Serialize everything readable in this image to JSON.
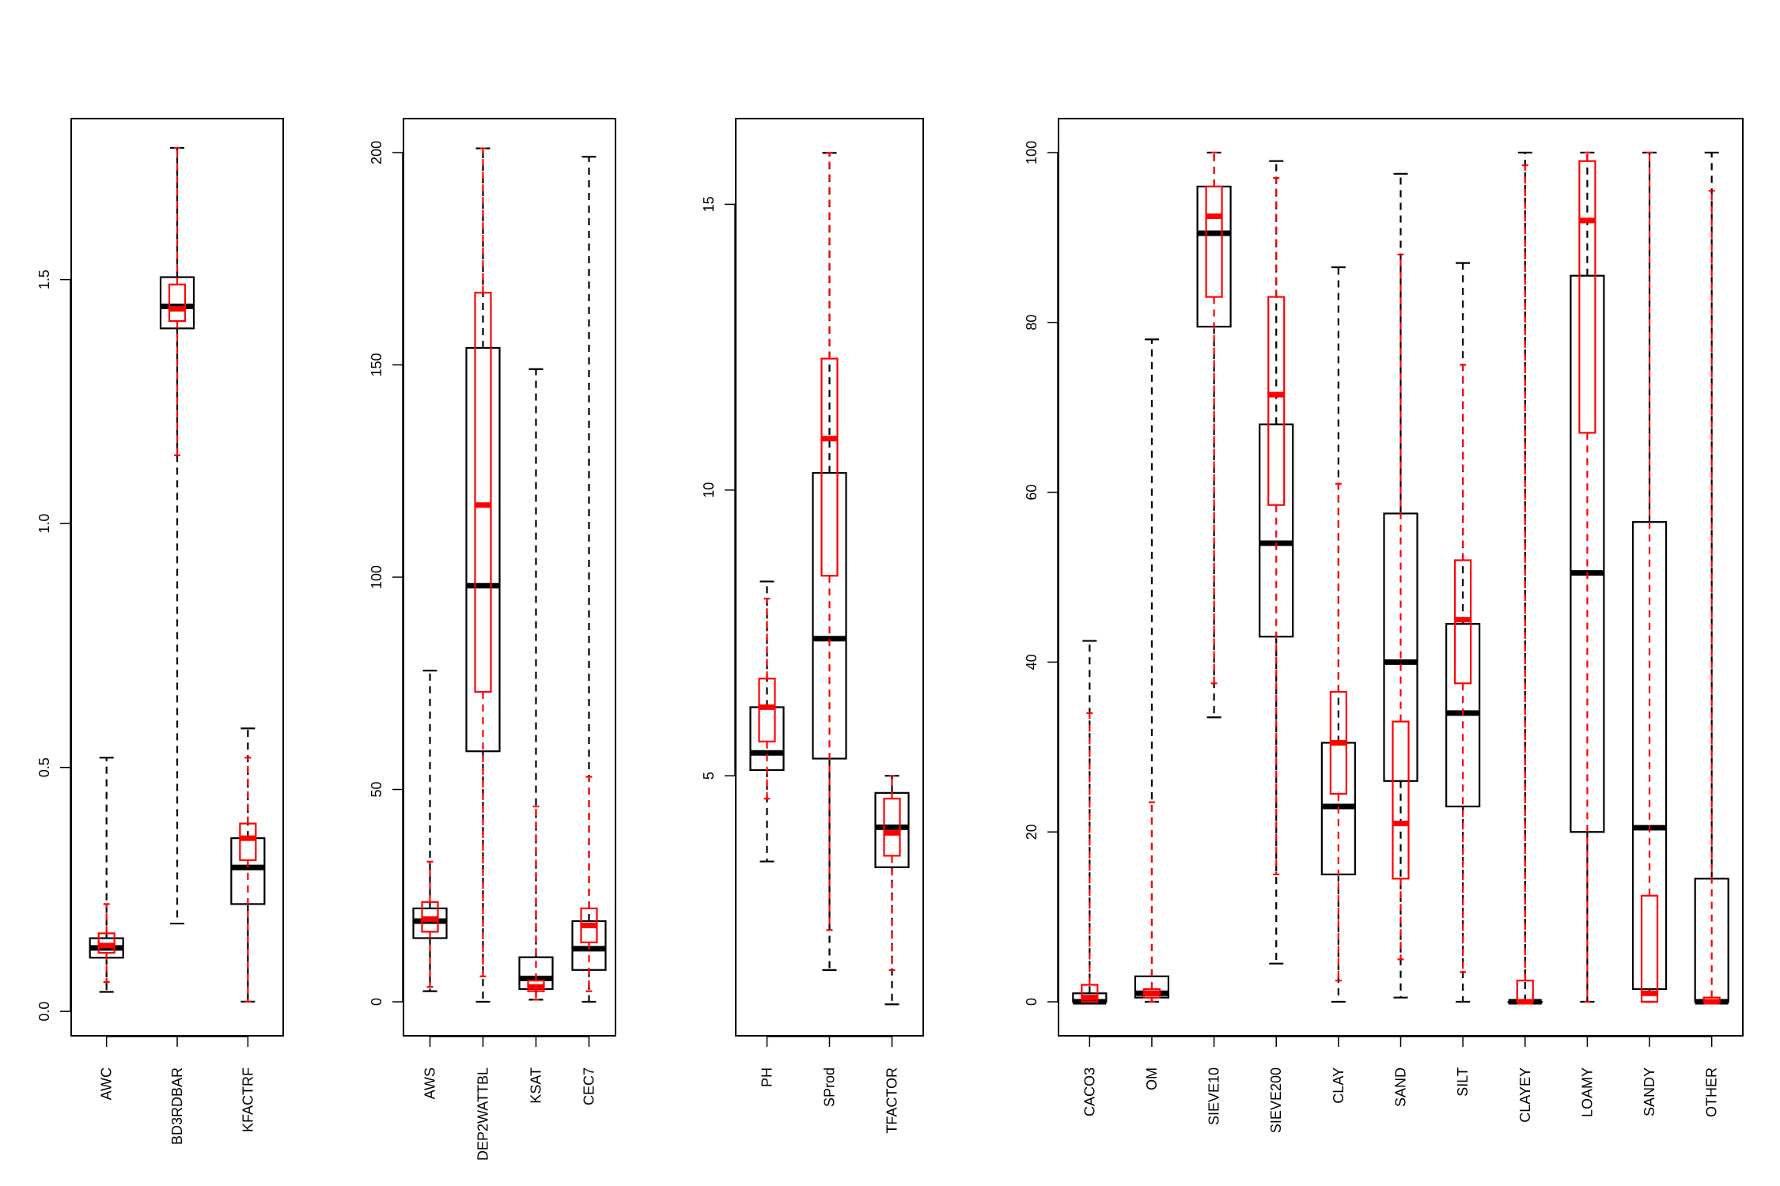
{
  "chart_data": [
    {
      "type": "box",
      "title": "",
      "xlabel": "",
      "ylabel": "",
      "ylim": [
        -0.05,
        1.83
      ],
      "yticks": [
        0.0,
        0.5,
        1.0,
        1.5
      ],
      "ytick_labels": [
        "0.0",
        "0.5",
        "1.0",
        "1.5"
      ],
      "categories": [
        "AWC",
        "BD3RDBAR",
        "KFACTRF"
      ],
      "series": [
        {
          "color": "#000000",
          "boxes": [
            {
              "whisker_low": 0.04,
              "q1": 0.11,
              "median": 0.13,
              "q3": 0.15,
              "whisker_high": 0.52
            },
            {
              "whisker_low": 0.18,
              "q1": 1.4,
              "median": 1.445,
              "q3": 1.505,
              "whisker_high": 1.77
            },
            {
              "whisker_low": 0.02,
              "q1": 0.22,
              "median": 0.295,
              "q3": 0.355,
              "whisker_high": 0.58
            }
          ]
        },
        {
          "color": "#ff0000",
          "boxes": [
            {
              "whisker_low": 0.06,
              "q1": 0.12,
              "median": 0.135,
              "q3": 0.16,
              "whisker_high": 0.22
            },
            {
              "whisker_low": 1.14,
              "q1": 1.415,
              "median": 1.44,
              "q3": 1.49,
              "whisker_high": 1.77
            },
            {
              "whisker_low": 0.02,
              "q1": 0.31,
              "median": 0.355,
              "q3": 0.385,
              "whisker_high": 0.52
            }
          ]
        }
      ]
    },
    {
      "type": "box",
      "title": "",
      "xlabel": "",
      "ylabel": "",
      "ylim": [
        -8,
        208
      ],
      "yticks": [
        0,
        50,
        100,
        150,
        200
      ],
      "ytick_labels": [
        "0",
        "50",
        "100",
        "150",
        "200"
      ],
      "categories": [
        "AWS",
        "DEP2WATTBL",
        "KSAT",
        "CEC7"
      ],
      "series": [
        {
          "color": "#000000",
          "boxes": [
            {
              "whisker_low": 2.5,
              "q1": 15,
              "median": 19,
              "q3": 22,
              "whisker_high": 78
            },
            {
              "whisker_low": 0,
              "q1": 59,
              "median": 98,
              "q3": 154,
              "whisker_high": 201
            },
            {
              "whisker_low": 0.5,
              "q1": 3,
              "median": 5.5,
              "q3": 10.5,
              "whisker_high": 149
            },
            {
              "whisker_low": 0,
              "q1": 7.5,
              "median": 12.5,
              "q3": 19,
              "whisker_high": 199
            }
          ]
        },
        {
          "color": "#ff0000",
          "boxes": [
            {
              "whisker_low": 3.5,
              "q1": 16.5,
              "median": 19.5,
              "q3": 23.5,
              "whisker_high": 33
            },
            {
              "whisker_low": 6,
              "q1": 73,
              "median": 117,
              "q3": 167,
              "whisker_high": 201
            },
            {
              "whisker_low": 0.5,
              "q1": 2.5,
              "median": 3.5,
              "q3": 5,
              "whisker_high": 46
            },
            {
              "whisker_low": 2.5,
              "q1": 14,
              "median": 18,
              "q3": 22,
              "whisker_high": 53
            }
          ]
        }
      ]
    },
    {
      "type": "box",
      "title": "",
      "xlabel": "",
      "ylabel": "",
      "ylim": [
        0.45,
        16.5
      ],
      "yticks": [
        5,
        10,
        15
      ],
      "ytick_labels": [
        "5",
        "10",
        "15"
      ],
      "categories": [
        "PH",
        "SProd",
        "TFACTOR"
      ],
      "series": [
        {
          "color": "#000000",
          "boxes": [
            {
              "whisker_low": 3.5,
              "q1": 5.1,
              "median": 5.4,
              "q3": 6.2,
              "whisker_high": 8.4
            },
            {
              "whisker_low": 1.6,
              "q1": 5.3,
              "median": 7.4,
              "q3": 10.3,
              "whisker_high": 15.9
            },
            {
              "whisker_low": 1.0,
              "q1": 3.4,
              "median": 4.1,
              "q3": 4.7,
              "whisker_high": 5.0
            }
          ]
        },
        {
          "color": "#ff0000",
          "boxes": [
            {
              "whisker_low": 4.6,
              "q1": 5.6,
              "median": 6.2,
              "q3": 6.7,
              "whisker_high": 8.1
            },
            {
              "whisker_low": 2.3,
              "q1": 8.5,
              "median": 10.9,
              "q3": 12.3,
              "whisker_high": 15.9
            },
            {
              "whisker_low": 1.6,
              "q1": 3.6,
              "median": 4.0,
              "q3": 4.6,
              "whisker_high": 5.0
            }
          ]
        }
      ]
    },
    {
      "type": "box",
      "title": "",
      "xlabel": "",
      "ylabel": "",
      "ylim": [
        -4,
        104
      ],
      "yticks": [
        0,
        20,
        40,
        60,
        80,
        100
      ],
      "ytick_labels": [
        "0",
        "20",
        "40",
        "60",
        "80",
        "100"
      ],
      "categories": [
        "CACO3",
        "OM",
        "SIEVE10",
        "SIEVE200",
        "CLAY",
        "SAND",
        "SILT",
        "CLAYEY",
        "LOAMY",
        "SANDY",
        "OTHER"
      ],
      "series": [
        {
          "color": "#000000",
          "boxes": [
            {
              "whisker_low": 0,
              "q1": 0,
              "median": 0,
              "q3": 1,
              "whisker_high": 42.5
            },
            {
              "whisker_low": 0,
              "q1": 0.5,
              "median": 1,
              "q3": 3,
              "whisker_high": 78
            },
            {
              "whisker_low": 33.5,
              "q1": 79.5,
              "median": 90.5,
              "q3": 96,
              "whisker_high": 100
            },
            {
              "whisker_low": 4.5,
              "q1": 43,
              "median": 54,
              "q3": 68,
              "whisker_high": 99
            },
            {
              "whisker_low": 0,
              "q1": 15,
              "median": 23,
              "q3": 30.5,
              "whisker_high": 86.5
            },
            {
              "whisker_low": 0.5,
              "q1": 26,
              "median": 40,
              "q3": 57.5,
              "whisker_high": 97.5
            },
            {
              "whisker_low": 0,
              "q1": 23,
              "median": 34,
              "q3": 44.5,
              "whisker_high": 87
            },
            {
              "whisker_low": 0,
              "q1": 0,
              "median": 0,
              "q3": 0,
              "whisker_high": 100
            },
            {
              "whisker_low": 0,
              "q1": 20,
              "median": 50.5,
              "q3": 85.5,
              "whisker_high": 100
            },
            {
              "whisker_low": 0,
              "q1": 1.5,
              "median": 20.5,
              "q3": 56.5,
              "whisker_high": 100
            },
            {
              "whisker_low": 0,
              "q1": 0,
              "median": 0,
              "q3": 14.5,
              "whisker_high": 100
            }
          ]
        },
        {
          "color": "#ff0000",
          "boxes": [
            {
              "whisker_low": 0,
              "q1": 0,
              "median": 0.5,
              "q3": 2,
              "whisker_high": 34
            },
            {
              "whisker_low": 0,
              "q1": 0.5,
              "median": 1,
              "q3": 1.5,
              "whisker_high": 23.5
            },
            {
              "whisker_low": 37.5,
              "q1": 83,
              "median": 92.5,
              "q3": 96,
              "whisker_high": 100
            },
            {
              "whisker_low": 15,
              "q1": 58.5,
              "median": 71.5,
              "q3": 83,
              "whisker_high": 97
            },
            {
              "whisker_low": 2.5,
              "q1": 24.5,
              "median": 30.5,
              "q3": 36.5,
              "whisker_high": 61
            },
            {
              "whisker_low": 5,
              "q1": 14.5,
              "median": 21,
              "q3": 33,
              "whisker_high": 88
            },
            {
              "whisker_low": 3.5,
              "q1": 37.5,
              "median": 45,
              "q3": 52,
              "whisker_high": 75
            },
            {
              "whisker_low": 0,
              "q1": 0,
              "median": 0,
              "q3": 2.5,
              "whisker_high": 98.5
            },
            {
              "whisker_low": 0,
              "q1": 67,
              "median": 92,
              "q3": 99,
              "whisker_high": 100
            },
            {
              "whisker_low": 0,
              "q1": 0,
              "median": 1,
              "q3": 12.5,
              "whisker_high": 100
            },
            {
              "whisker_low": 0,
              "q1": 0,
              "median": 0,
              "q3": 0.5,
              "whisker_high": 95.5
            }
          ]
        }
      ]
    }
  ]
}
